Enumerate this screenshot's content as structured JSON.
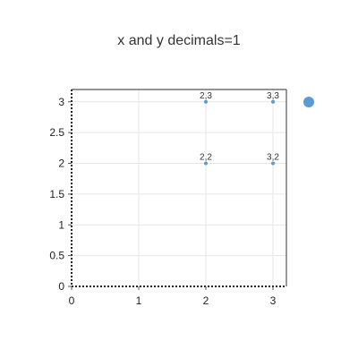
{
  "chart_data": {
    "type": "scatter",
    "title": "x and y decimals=1",
    "xlabel": "",
    "ylabel": "",
    "xlim": [
      0,
      3.2
    ],
    "ylim": [
      0,
      3.2
    ],
    "x_ticks": [
      0,
      1,
      2,
      3
    ],
    "y_ticks": [
      0,
      0.5,
      1,
      1.5,
      2,
      2.5,
      3
    ],
    "x_tick_labels": [
      "0",
      "1",
      "2",
      "3"
    ],
    "y_tick_labels": [
      "0",
      "0.5",
      "1",
      "1.5",
      "2",
      "2.5",
      "3"
    ],
    "grid": true,
    "legend": "right",
    "series": [
      {
        "color": "#5b9bd5",
        "points": [
          {
            "x": 2,
            "y": 3,
            "label": "2,3"
          },
          {
            "x": 3,
            "y": 3,
            "label": "3,3"
          },
          {
            "x": 2,
            "y": 2,
            "label": "2,2"
          },
          {
            "x": 3,
            "y": 2,
            "label": "3,2"
          }
        ]
      }
    ]
  }
}
